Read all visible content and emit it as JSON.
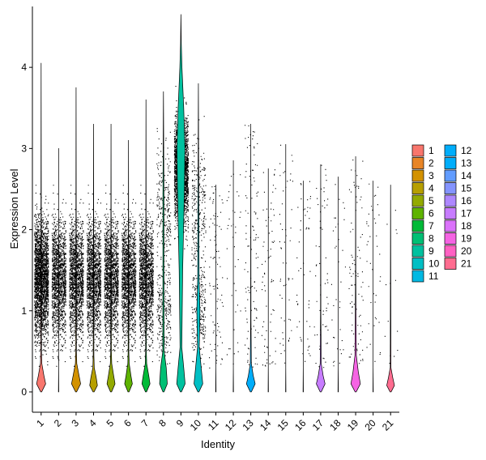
{
  "chart_data": {
    "type": "violin",
    "xlabel": "Identity",
    "ylabel": "Expression Level",
    "ylim": [
      -0.25,
      4.75
    ],
    "yticks": [
      0,
      1,
      2,
      3,
      4
    ],
    "categories": [
      "1",
      "2",
      "3",
      "4",
      "5",
      "6",
      "7",
      "8",
      "9",
      "10",
      "11",
      "12",
      "13",
      "14",
      "15",
      "16",
      "17",
      "18",
      "19",
      "20",
      "21"
    ],
    "colors": [
      "#F8766D",
      "#E88526",
      "#D39200",
      "#B79F00",
      "#93AA00",
      "#5EB300",
      "#00BA38",
      "#00BF74",
      "#00C19F",
      "#00BFC4",
      "#00B9E3",
      "#00ADFA",
      "#619CFF",
      "#AE87FF",
      "#DB72FB",
      "#F564E3",
      "#FF61C3",
      "#FF6C90",
      "#F8766D",
      "#E88526",
      "#FF61C3"
    ],
    "legend": {
      "placement": "right",
      "columns": 2
    },
    "violins": [
      {
        "id": "1",
        "color": "#F8766D",
        "max": 4.05,
        "shape": [
          [
            0,
            0.028
          ],
          [
            0.1,
            0.26
          ],
          [
            0.2,
            0.16
          ],
          [
            0.35,
            0.04
          ],
          [
            0.5,
            0.02
          ],
          [
            4.05,
            0.001
          ]
        ],
        "pts": 2600,
        "ptsMax": 3.7
      },
      {
        "id": "2",
        "color": "#E88526",
        "max": 3.0,
        "shape": [
          [
            0,
            0.01
          ],
          [
            0.3,
            0.001
          ]
        ],
        "pts": 2000,
        "ptsMax": 3.0
      },
      {
        "id": "3",
        "color": "#D39200",
        "max": 3.75,
        "shape": [
          [
            0,
            0.028
          ],
          [
            0.1,
            0.26
          ],
          [
            0.2,
            0.17
          ],
          [
            0.35,
            0.04
          ],
          [
            0.5,
            0.02
          ],
          [
            3.75,
            0.001
          ]
        ],
        "pts": 2300,
        "ptsMax": 3.6
      },
      {
        "id": "4",
        "color": "#B79F00",
        "max": 3.3,
        "shape": [
          [
            0,
            0.03
          ],
          [
            0.08,
            0.22
          ],
          [
            0.18,
            0.15
          ],
          [
            0.3,
            0.04
          ],
          [
            0.45,
            0.02
          ],
          [
            3.3,
            0.001
          ]
        ],
        "pts": 1800,
        "ptsMax": 3.3
      },
      {
        "id": "5",
        "color": "#93AA00",
        "max": 3.3,
        "shape": [
          [
            0,
            0.03
          ],
          [
            0.1,
            0.23
          ],
          [
            0.2,
            0.15
          ],
          [
            0.35,
            0.04
          ],
          [
            0.5,
            0.02
          ],
          [
            3.3,
            0.001
          ]
        ],
        "pts": 1900,
        "ptsMax": 3.3
      },
      {
        "id": "6",
        "color": "#5EB300",
        "max": 3.1,
        "shape": [
          [
            0,
            0.03
          ],
          [
            0.1,
            0.22
          ],
          [
            0.2,
            0.14
          ],
          [
            0.35,
            0.04
          ],
          [
            0.5,
            0.02
          ],
          [
            3.1,
            0.001
          ]
        ],
        "pts": 1700,
        "ptsMax": 3.1
      },
      {
        "id": "7",
        "color": "#00BA38",
        "max": 3.6,
        "shape": [
          [
            0,
            0.03
          ],
          [
            0.1,
            0.23
          ],
          [
            0.2,
            0.16
          ],
          [
            0.35,
            0.04
          ],
          [
            0.5,
            0.02
          ],
          [
            3.6,
            0.001
          ]
        ],
        "pts": 1800,
        "ptsMax": 3.6
      },
      {
        "id": "8",
        "color": "#00BF74",
        "max": 3.7,
        "shape": [
          [
            0,
            0.03
          ],
          [
            0.1,
            0.22
          ],
          [
            0.3,
            0.16
          ],
          [
            0.5,
            0.04
          ],
          [
            1.5,
            0.03
          ],
          [
            2.4,
            0.03
          ],
          [
            3.7,
            0.001
          ]
        ],
        "pts": 500,
        "ptsMax": 3.7
      },
      {
        "id": "9",
        "color": "#00C19F",
        "max": 4.65,
        "shape": [
          [
            0,
            0.03
          ],
          [
            0.1,
            0.24
          ],
          [
            0.3,
            0.16
          ],
          [
            0.55,
            0.05
          ],
          [
            1.5,
            0.1
          ],
          [
            2.5,
            0.2
          ],
          [
            3.0,
            0.23
          ],
          [
            3.5,
            0.16
          ],
          [
            4.0,
            0.06
          ],
          [
            4.3,
            0.02
          ],
          [
            4.65,
            0.001
          ]
        ],
        "pts": 2000,
        "ptsMax": 4.6
      },
      {
        "id": "10",
        "color": "#00BFC4",
        "max": 3.8,
        "shape": [
          [
            0,
            0.03
          ],
          [
            0.1,
            0.25
          ],
          [
            0.3,
            0.16
          ],
          [
            0.55,
            0.05
          ],
          [
            1.0,
            0.09
          ],
          [
            1.4,
            0.04
          ],
          [
            2.5,
            0.02
          ],
          [
            3.8,
            0.001
          ]
        ],
        "pts": 500,
        "ptsMax": 3.8
      },
      {
        "id": "11",
        "color": "#00B9E3",
        "max": 2.55,
        "shape": [
          [
            0,
            0.01
          ],
          [
            0.3,
            0.001
          ]
        ],
        "pts": 90,
        "ptsMax": 2.55
      },
      {
        "id": "12",
        "color": "#00ADFA",
        "max": 2.85,
        "shape": [
          [
            0,
            0.01
          ],
          [
            0.3,
            0.001
          ]
        ],
        "pts": 40,
        "ptsMax": 2.85
      },
      {
        "id": "13",
        "color": "#00ADFA",
        "max": 3.3,
        "shape": [
          [
            0,
            0.03
          ],
          [
            0.1,
            0.25
          ],
          [
            0.2,
            0.14
          ],
          [
            0.35,
            0.03
          ],
          [
            0.9,
            0.01
          ],
          [
            3.3,
            0.001
          ]
        ],
        "pts": 110,
        "ptsMax": 3.3
      },
      {
        "id": "14",
        "color": "#619CFF",
        "max": 2.75,
        "shape": [
          [
            0,
            0.01
          ],
          [
            0.3,
            0.001
          ]
        ],
        "pts": 70,
        "ptsMax": 2.75
      },
      {
        "id": "15",
        "color": "#8494FF",
        "max": 3.05,
        "shape": [
          [
            0,
            0.01
          ],
          [
            0.3,
            0.001
          ]
        ],
        "pts": 55,
        "ptsMax": 3.05
      },
      {
        "id": "16",
        "color": "#AE87FF",
        "max": 2.6,
        "shape": [
          [
            0,
            0.01
          ],
          [
            0.3,
            0.001
          ]
        ],
        "pts": 50,
        "ptsMax": 2.6
      },
      {
        "id": "17",
        "color": "#C77CFF",
        "max": 2.8,
        "shape": [
          [
            0,
            0.03
          ],
          [
            0.1,
            0.25
          ],
          [
            0.2,
            0.14
          ],
          [
            0.35,
            0.03
          ],
          [
            1.0,
            0.01
          ],
          [
            2.8,
            0.001
          ]
        ],
        "pts": 60,
        "ptsMax": 2.8
      },
      {
        "id": "18",
        "color": "#DB72FB",
        "max": 2.65,
        "shape": [
          [
            0,
            0.01
          ],
          [
            0.3,
            0.001
          ]
        ],
        "pts": 35,
        "ptsMax": 2.65
      },
      {
        "id": "19",
        "color": "#F564E3",
        "max": 2.9,
        "shape": [
          [
            0,
            0.03
          ],
          [
            0.1,
            0.27
          ],
          [
            0.25,
            0.15
          ],
          [
            0.45,
            0.04
          ],
          [
            1.0,
            0.02
          ],
          [
            1.4,
            0.01
          ],
          [
            2.9,
            0.001
          ]
        ],
        "pts": 90,
        "ptsMax": 2.9
      },
      {
        "id": "20",
        "color": "#FF61C3",
        "max": 2.6,
        "shape": [
          [
            0,
            0.01
          ],
          [
            0.3,
            0.001
          ]
        ],
        "pts": 40,
        "ptsMax": 2.6
      },
      {
        "id": "21",
        "color": "#FF6C90",
        "max": 2.55,
        "shape": [
          [
            0,
            0.03
          ],
          [
            0.08,
            0.22
          ],
          [
            0.18,
            0.12
          ],
          [
            0.3,
            0.02
          ],
          [
            2.55,
            0.001
          ]
        ],
        "pts": 14,
        "ptsMax": 2.55
      }
    ],
    "legend_entries": [
      {
        "label": "1",
        "color": "#F8766D"
      },
      {
        "label": "2",
        "color": "#E88526"
      },
      {
        "label": "3",
        "color": "#D39200"
      },
      {
        "label": "4",
        "color": "#B79F00"
      },
      {
        "label": "5",
        "color": "#93AA00"
      },
      {
        "label": "6",
        "color": "#5EB300"
      },
      {
        "label": "7",
        "color": "#00BA38"
      },
      {
        "label": "8",
        "color": "#00BF74"
      },
      {
        "label": "9",
        "color": "#00C19F"
      },
      {
        "label": "10",
        "color": "#00BFC4"
      },
      {
        "label": "11",
        "color": "#00B9E3"
      },
      {
        "label": "12",
        "color": "#00ADFA"
      },
      {
        "label": "13",
        "color": "#00ADFA"
      },
      {
        "label": "14",
        "color": "#619CFF"
      },
      {
        "label": "15",
        "color": "#8494FF"
      },
      {
        "label": "16",
        "color": "#AE87FF"
      },
      {
        "label": "17",
        "color": "#C77CFF"
      },
      {
        "label": "18",
        "color": "#DB72FB"
      },
      {
        "label": "19",
        "color": "#F564E3"
      },
      {
        "label": "20",
        "color": "#FF61C3"
      },
      {
        "label": "21",
        "color": "#FF6C90"
      }
    ]
  }
}
